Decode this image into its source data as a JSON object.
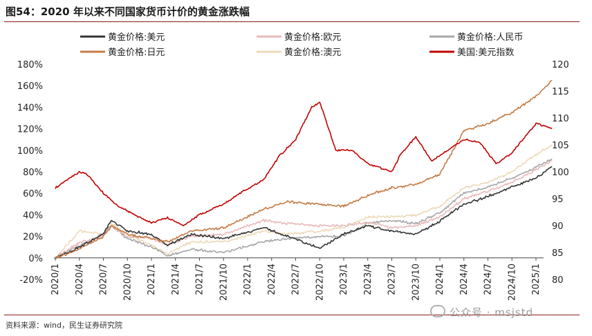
{
  "figure": {
    "title": "图54：2020 年以来不同国家货币计价的黄金涨跌幅",
    "source": "资料来源：wind，民生证券研究院",
    "watermark": "公众号 · msjstd"
  },
  "chart_data": {
    "type": "line",
    "xlabel": "",
    "ylabel_left": "",
    "ylabel_right": "",
    "x_ticks": [
      "2020/1",
      "2020/4",
      "2020/7",
      "2020/10",
      "2021/1",
      "2021/4",
      "2021/7",
      "2021/10",
      "2022/1",
      "2022/4",
      "2022/7",
      "2022/10",
      "2023/1",
      "2023/4",
      "2023/7",
      "2023/10",
      "2024/1",
      "2024/4",
      "2024/7",
      "2024/10",
      "2025/1"
    ],
    "y_left_ticks": [
      "180%",
      "160%",
      "140%",
      "120%",
      "100%",
      "80%",
      "60%",
      "40%",
      "20%",
      "0%",
      "-20%"
    ],
    "y_right_ticks": [
      "120",
      "115",
      "110",
      "105",
      "100",
      "95",
      "90",
      "85",
      "80"
    ],
    "ylim_left": [
      -20,
      180
    ],
    "ylim_right": [
      80,
      120
    ],
    "grid": false,
    "legend_position": "top",
    "series": [
      {
        "name": "黄金价格:美元",
        "color": "#333333",
        "axis": "left",
        "dates": [
          "2020/1",
          "2020/4",
          "2020/7",
          "2020/8",
          "2020/10",
          "2021/1",
          "2021/3",
          "2021/6",
          "2021/10",
          "2022/3",
          "2022/6",
          "2022/10",
          "2023/1",
          "2023/4",
          "2023/7",
          "2023/10",
          "2024/1",
          "2024/4",
          "2024/7",
          "2024/10",
          "2025/1",
          "2025/3"
        ],
        "values": [
          0,
          10,
          22,
          35,
          25,
          22,
          12,
          22,
          18,
          28,
          20,
          9,
          22,
          30,
          25,
          22,
          34,
          50,
          57,
          66,
          74,
          85
        ]
      },
      {
        "name": "黄金价格:欧元",
        "color": "#e8b8b8",
        "axis": "left",
        "dates": [
          "2020/1",
          "2020/4",
          "2020/7",
          "2020/8",
          "2020/10",
          "2021/1",
          "2021/3",
          "2021/6",
          "2021/10",
          "2022/3",
          "2022/6",
          "2022/10",
          "2023/1",
          "2023/4",
          "2023/7",
          "2023/10",
          "2024/1",
          "2024/4",
          "2024/7",
          "2024/10",
          "2025/1",
          "2025/3"
        ],
        "values": [
          0,
          14,
          20,
          30,
          20,
          18,
          12,
          20,
          22,
          35,
          32,
          30,
          30,
          33,
          28,
          30,
          38,
          55,
          62,
          70,
          82,
          90
        ]
      },
      {
        "name": "黄金价格:人民币",
        "color": "#a6a6a6",
        "axis": "left",
        "dates": [
          "2020/1",
          "2020/4",
          "2020/7",
          "2020/8",
          "2020/10",
          "2021/1",
          "2021/3",
          "2021/6",
          "2021/10",
          "2022/3",
          "2022/6",
          "2022/10",
          "2023/1",
          "2023/4",
          "2023/7",
          "2023/10",
          "2024/1",
          "2024/4",
          "2024/7",
          "2024/10",
          "2025/1",
          "2025/3"
        ],
        "values": [
          0,
          12,
          22,
          30,
          18,
          10,
          2,
          8,
          5,
          15,
          18,
          20,
          20,
          32,
          35,
          32,
          42,
          60,
          66,
          74,
          84,
          92
        ]
      },
      {
        "name": "黄金价格:日元",
        "color": "#c47a45",
        "axis": "left",
        "dates": [
          "2020/1",
          "2020/4",
          "2020/7",
          "2020/8",
          "2020/10",
          "2021/1",
          "2021/3",
          "2021/6",
          "2021/10",
          "2022/3",
          "2022/6",
          "2022/10",
          "2023/1",
          "2023/4",
          "2023/7",
          "2023/10",
          "2024/1",
          "2024/4",
          "2024/7",
          "2024/10",
          "2025/1",
          "2025/3"
        ],
        "values": [
          0,
          8,
          20,
          30,
          22,
          18,
          15,
          25,
          28,
          45,
          52,
          50,
          48,
          58,
          65,
          68,
          78,
          118,
          125,
          135,
          150,
          165
        ]
      },
      {
        "name": "黄金价格:澳元",
        "color": "#ecd9b8",
        "axis": "left",
        "dates": [
          "2020/1",
          "2020/4",
          "2020/7",
          "2020/8",
          "2020/10",
          "2021/1",
          "2021/3",
          "2021/6",
          "2021/10",
          "2022/3",
          "2022/6",
          "2022/10",
          "2023/1",
          "2023/4",
          "2023/7",
          "2023/10",
          "2024/1",
          "2024/4",
          "2024/7",
          "2024/10",
          "2025/1",
          "2025/3"
        ],
        "values": [
          0,
          25,
          22,
          32,
          22,
          12,
          4,
          15,
          15,
          25,
          22,
          25,
          28,
          38,
          38,
          40,
          48,
          65,
          70,
          80,
          96,
          105
        ]
      },
      {
        "name": "美国:美元指数",
        "color": "#c00000",
        "axis": "right",
        "dates": [
          "2020/1",
          "2020/3",
          "2020/4",
          "2020/5",
          "2020/7",
          "2020/9",
          "2021/1",
          "2021/3",
          "2021/5",
          "2021/7",
          "2021/10",
          "2021/12",
          "2022/3",
          "2022/5",
          "2022/7",
          "2022/9",
          "2022/10",
          "2022/12",
          "2023/2",
          "2023/4",
          "2023/7",
          "2023/8",
          "2023/10",
          "2023/12",
          "2024/2",
          "2024/4",
          "2024/6",
          "2024/8",
          "2024/10",
          "2025/1",
          "2025/3"
        ],
        "values": [
          97,
          99,
          100,
          99.5,
          96,
          93.5,
          90.5,
          91.5,
          90,
          92,
          94,
          96,
          98.5,
          103,
          106,
          112,
          113,
          104,
          104,
          101.5,
          100,
          103,
          106.5,
          102,
          104,
          106,
          105.5,
          101.5,
          103.5,
          109,
          108
        ]
      }
    ]
  }
}
